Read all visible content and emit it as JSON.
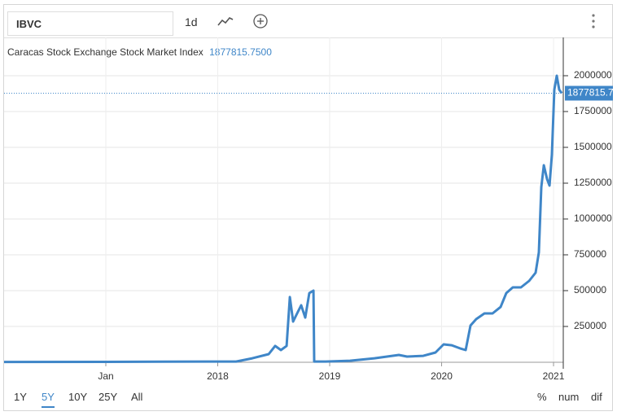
{
  "toolbar": {
    "symbol": "IBVC",
    "interval": "1d"
  },
  "chart_data": {
    "type": "line",
    "title": "Caracas Stock Exchange Stock Market Index",
    "last_price": {
      "value": 1877815.75,
      "label": "1877815.7500"
    },
    "x": [
      2016.091,
      2017.0,
      2017.509,
      2018.164,
      2018.309,
      2018.455,
      2018.513,
      2018.564,
      2018.615,
      2018.644,
      2018.673,
      2018.709,
      2018.745,
      2018.782,
      2018.818,
      2018.855,
      2018.862,
      2018.964,
      2019.182,
      2019.4,
      2019.618,
      2019.691,
      2019.836,
      2019.945,
      2020.018,
      2020.091,
      2020.164,
      2020.215,
      2020.258,
      2020.309,
      2020.382,
      2020.455,
      2020.527,
      2020.578,
      2020.636,
      2020.709,
      2020.782,
      2020.84,
      2020.869,
      2020.891,
      2020.913,
      2020.942,
      2020.964,
      2020.985,
      2021.007,
      2021.029,
      2021.051,
      2021.073
    ],
    "series": [
      {
        "name": "IBVC",
        "color": "#3f86c8",
        "values": [
          2000,
          3000,
          4000,
          5000,
          28000,
          57000,
          114000,
          85000,
          114000,
          455000,
          284000,
          341000,
          398000,
          312000,
          483000,
          500000,
          5000,
          5000,
          11000,
          28000,
          51000,
          40000,
          45000,
          68000,
          125000,
          119000,
          97000,
          85000,
          256000,
          301000,
          341000,
          341000,
          386000,
          483000,
          523000,
          523000,
          568000,
          625000,
          767000,
          1222000,
          1375000,
          1278000,
          1233000,
          1449000,
          1903000,
          2000000,
          1903000,
          1878000
        ]
      }
    ],
    "xlim": [
      2016.091,
      2021.087
    ],
    "xticks": [
      {
        "value": 2017,
        "label": "Jan"
      },
      2018,
      2019,
      2020,
      2021
    ],
    "ylim": [
      0,
      2267000
    ],
    "yticks": [
      250000,
      500000,
      750000,
      1000000,
      1250000,
      1500000,
      1750000,
      2000000
    ],
    "grid": true
  },
  "ranges": [
    "1Y",
    "5Y",
    "10Y",
    "25Y",
    "All"
  ],
  "selected_range": 1,
  "modes": [
    "%",
    "num",
    "dif"
  ]
}
